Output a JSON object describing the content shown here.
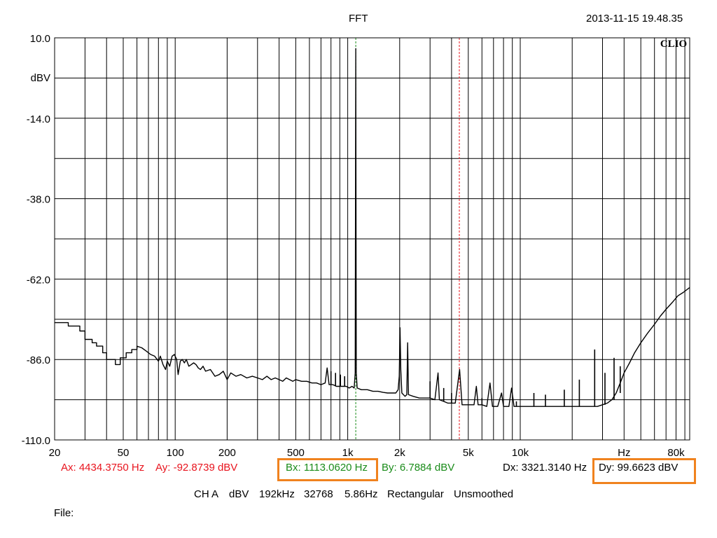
{
  "header": {
    "title": "FFT",
    "timestamp": "2013-11-15 19.48.35",
    "logo": "CLIO"
  },
  "cursors": {
    "ax": "Ax: 4434.3750 Hz",
    "ay": "Ay: -92.8739 dBV",
    "bx": "Bx: 1113.0620 Hz",
    "by": "By: 6.7884 dBV",
    "dx": "Dx: 3321.3140 Hz",
    "dy": "Dy: 99.6623 dBV",
    "a_color": "#e8141e",
    "b_color": "#1a8c1a",
    "highlight_color": "#f0821e"
  },
  "settings": {
    "channel": "CH A",
    "unit": "dBV",
    "sample_rate": "192kHz",
    "fft_size": "32768",
    "resolution": "5.86Hz",
    "window": "Rectangular",
    "smoothing": "Unsmoothed"
  },
  "file": {
    "label": "File:"
  },
  "chart_data": {
    "type": "line",
    "title": "FFT",
    "xscale": "log",
    "xlim": [
      20,
      96000
    ],
    "ylim": [
      -110,
      10
    ],
    "ylabel": "dBV",
    "xlabel": "Hz",
    "grid": true,
    "x_tick_labels": [
      {
        "v": 20,
        "t": "20"
      },
      {
        "v": 50,
        "t": "50"
      },
      {
        "v": 100,
        "t": "100"
      },
      {
        "v": 200,
        "t": "200"
      },
      {
        "v": 500,
        "t": "500"
      },
      {
        "v": 1000,
        "t": "1k"
      },
      {
        "v": 2000,
        "t": "2k"
      },
      {
        "v": 5000,
        "t": "5k"
      },
      {
        "v": 10000,
        "t": "10k"
      },
      {
        "v": 40000,
        "t": "Hz"
      },
      {
        "v": 80000,
        "t": "80k"
      }
    ],
    "y_tick_labels": [
      {
        "v": 10,
        "t": "10.0"
      },
      {
        "v": -14,
        "t": "-14.0"
      },
      {
        "v": -38,
        "t": "-38.0"
      },
      {
        "v": -62,
        "t": "-62.0"
      },
      {
        "v": -86,
        "t": "-86.0"
      },
      {
        "v": -110,
        "t": "-110.0"
      }
    ],
    "cursor_a": {
      "x": 4434.375,
      "style": "dashed",
      "color": "#e8141e"
    },
    "cursor_b": {
      "x": 1113.062,
      "style": "dashed",
      "color": "#1a8c1a"
    },
    "series": [
      {
        "color": "#000000",
        "points": [
          [
            20,
            -75.0
          ],
          [
            24,
            -75.0
          ],
          [
            24,
            -76.0
          ],
          [
            28,
            -76.0
          ],
          [
            28,
            -77.5
          ],
          [
            30,
            -77.5
          ],
          [
            30,
            -80.0
          ],
          [
            33,
            -80.0
          ],
          [
            33,
            -81.0
          ],
          [
            35,
            -81.0
          ],
          [
            35,
            -82.0
          ],
          [
            38,
            -82.0
          ],
          [
            38,
            -84.0
          ],
          [
            40,
            -84.0
          ],
          [
            40,
            -86.0
          ],
          [
            45,
            -86.0
          ],
          [
            45,
            -87.5
          ],
          [
            48,
            -87.5
          ],
          [
            48,
            -85.5
          ],
          [
            52,
            -85.5
          ],
          [
            52,
            -84.0
          ],
          [
            56,
            -84.0
          ],
          [
            56,
            -83.0
          ],
          [
            60,
            -83.0
          ],
          [
            60,
            -82.0
          ],
          [
            64,
            -82.5
          ],
          [
            68,
            -83.5
          ],
          [
            72,
            -84.5
          ],
          [
            76,
            -85.0
          ],
          [
            80,
            -86.5
          ],
          [
            82,
            -85.0
          ],
          [
            85,
            -87.5
          ],
          [
            88,
            -89.0
          ],
          [
            90,
            -86.5
          ],
          [
            93,
            -88.0
          ],
          [
            96,
            -85.0
          ],
          [
            99,
            -84.5
          ],
          [
            102,
            -86.0
          ],
          [
            104,
            -90.5
          ],
          [
            107,
            -86.5
          ],
          [
            110,
            -86.0
          ],
          [
            113,
            -87.0
          ],
          [
            116,
            -86.0
          ],
          [
            120,
            -88.0
          ],
          [
            124,
            -87.5
          ],
          [
            128,
            -87.0
          ],
          [
            132,
            -87.5
          ],
          [
            136,
            -88.5
          ],
          [
            140,
            -89.0
          ],
          [
            145,
            -88.0
          ],
          [
            150,
            -89.5
          ],
          [
            160,
            -89.0
          ],
          [
            170,
            -91.0
          ],
          [
            180,
            -90.5
          ],
          [
            190,
            -89.5
          ],
          [
            200,
            -92.0
          ],
          [
            210,
            -90.0
          ],
          [
            225,
            -91.0
          ],
          [
            240,
            -90.5
          ],
          [
            260,
            -91.5
          ],
          [
            280,
            -91.0
          ],
          [
            300,
            -91.5
          ],
          [
            320,
            -92.0
          ],
          [
            340,
            -91.0
          ],
          [
            360,
            -92.0
          ],
          [
            380,
            -91.5
          ],
          [
            400,
            -92.0
          ],
          [
            420,
            -92.5
          ],
          [
            440,
            -91.5
          ],
          [
            460,
            -92.0
          ],
          [
            480,
            -92.5
          ],
          [
            500,
            -92.0
          ],
          [
            540,
            -92.5
          ],
          [
            580,
            -92.5
          ],
          [
            620,
            -93.0
          ],
          [
            660,
            -93.0
          ],
          [
            700,
            -93.5
          ],
          [
            740,
            -93.0
          ],
          [
            760,
            -88.5
          ],
          [
            780,
            -93.5
          ],
          [
            820,
            -93.5
          ],
          [
            860,
            -94.0
          ],
          [
            900,
            -94.0
          ],
          [
            940,
            -94.0
          ],
          [
            980,
            -94.0
          ],
          [
            1020,
            -94.5
          ],
          [
            1060,
            -94.0
          ],
          [
            1090,
            -94.5
          ],
          [
            1105,
            -90.0
          ],
          [
            1113,
            6.8
          ],
          [
            1121,
            -90.0
          ],
          [
            1135,
            -94.5
          ],
          [
            1200,
            -95.0
          ],
          [
            1300,
            -95.0
          ],
          [
            1400,
            -95.5
          ],
          [
            1500,
            -95.5
          ],
          [
            1600,
            -95.8
          ],
          [
            1700,
            -96.0
          ],
          [
            1800,
            -96.0
          ],
          [
            1900,
            -96.0
          ],
          [
            1960,
            -95.0
          ],
          [
            1990,
            -91.0
          ],
          [
            2010,
            -76.5
          ],
          [
            2030,
            -89.0
          ],
          [
            2060,
            -96.0
          ],
          [
            2150,
            -97.0
          ],
          [
            2200,
            -96.5
          ],
          [
            2226,
            -81.0
          ],
          [
            2250,
            -96.5
          ],
          [
            2400,
            -97.0
          ],
          [
            2600,
            -97.5
          ],
          [
            2800,
            -97.5
          ],
          [
            3000,
            -97.5
          ],
          [
            3200,
            -98.0
          ],
          [
            3339,
            -90.0
          ],
          [
            3400,
            -98.0
          ],
          [
            3600,
            -98.5
          ],
          [
            3800,
            -99.0
          ],
          [
            4000,
            -99.0
          ],
          [
            4200,
            -99.0
          ],
          [
            4452,
            -89.0
          ],
          [
            4600,
            -99.5
          ],
          [
            5000,
            -99.5
          ],
          [
            5400,
            -99.5
          ],
          [
            5565,
            -94.0
          ],
          [
            5700,
            -99.5
          ],
          [
            6000,
            -99.5
          ],
          [
            6400,
            -100.0
          ],
          [
            6678,
            -93.0
          ],
          [
            6900,
            -100.0
          ],
          [
            7400,
            -100.0
          ],
          [
            7791,
            -96.0
          ],
          [
            8000,
            -100.0
          ],
          [
            8600,
            -100.0
          ],
          [
            8904,
            -94.5
          ],
          [
            9200,
            -100.0
          ],
          [
            10000,
            -100.0
          ],
          [
            11000,
            -100.0
          ],
          [
            12000,
            -100.0
          ],
          [
            13000,
            -100.0
          ],
          [
            14000,
            -100.0
          ],
          [
            15000,
            -100.0
          ],
          [
            16000,
            -100.0
          ],
          [
            17000,
            -100.0
          ],
          [
            18000,
            -100.0
          ],
          [
            19000,
            -100.0
          ],
          [
            20000,
            -100.0
          ],
          [
            22000,
            -100.0
          ],
          [
            24000,
            -100.0
          ],
          [
            26000,
            -100.0
          ],
          [
            28000,
            -100.0
          ],
          [
            30000,
            -99.5
          ],
          [
            32000,
            -99.0
          ],
          [
            34000,
            -98.0
          ],
          [
            36000,
            -96.0
          ],
          [
            38000,
            -93.0
          ],
          [
            40000,
            -90.0
          ],
          [
            43000,
            -87.0
          ],
          [
            46000,
            -84.0
          ],
          [
            50000,
            -81.0
          ],
          [
            55000,
            -78.0
          ],
          [
            60000,
            -75.5
          ],
          [
            65000,
            -73.0
          ],
          [
            70000,
            -71.0
          ],
          [
            76000,
            -69.0
          ],
          [
            82000,
            -67.0
          ],
          [
            88000,
            -66.0
          ],
          [
            96000,
            -64.5
          ]
        ]
      }
    ],
    "peaks": [
      [
        800,
        -89.5
      ],
      [
        850,
        -90.0
      ],
      [
        907,
        -90.5
      ],
      [
        960,
        -91.0
      ],
      [
        3000,
        -92.5
      ],
      [
        3600,
        -94.5
      ],
      [
        4000,
        -96.0
      ],
      [
        6000,
        -97.5
      ],
      [
        9500,
        -98.5
      ],
      [
        12000,
        -96.0
      ],
      [
        14000,
        -96.5
      ],
      [
        18000,
        -95.0
      ],
      [
        22000,
        -92.0
      ],
      [
        27000,
        -83.0
      ],
      [
        31000,
        -90.0
      ],
      [
        35000,
        -85.5
      ],
      [
        38000,
        -88.0
      ]
    ]
  }
}
